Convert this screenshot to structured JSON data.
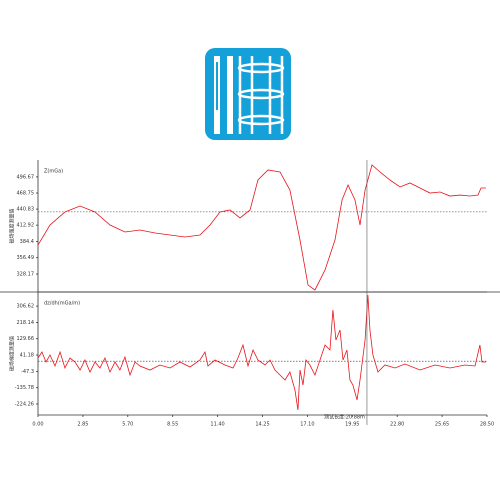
{
  "chart_data": [
    {
      "type": "line",
      "annotation": "Z(mGa)",
      "y_label": "磁场强度测量值",
      "color": "#e8141b",
      "xlim": [
        0,
        28.5
      ],
      "ylim": [
        297,
        526
      ],
      "yticks": [
        496.67,
        468.75,
        440.83,
        412.92,
        384.4,
        356.49,
        328.17
      ],
      "reference_line": 436,
      "cursor_x": 20.88,
      "x": [
        0.0,
        0.76,
        1.71,
        2.67,
        3.62,
        4.57,
        5.52,
        6.47,
        7.43,
        8.38,
        9.33,
        10.28,
        10.92,
        11.55,
        12.19,
        12.82,
        13.46,
        13.96,
        14.6,
        15.36,
        15.99,
        16.63,
        17.14,
        17.58,
        18.22,
        18.85,
        19.3,
        19.68,
        20.12,
        20.44,
        20.76,
        21.2,
        21.71,
        22.34,
        22.98,
        23.61,
        24.25,
        24.88,
        25.52,
        26.15,
        26.78,
        27.42,
        27.93,
        28.12,
        28.43
      ],
      "values": [
        378.5,
        413.2,
        435.8,
        446.2,
        435.8,
        413.2,
        401.1,
        404.6,
        399.3,
        395.9,
        392.4,
        395.9,
        413.2,
        435.8,
        439.3,
        425.4,
        439.3,
        491.3,
        508.7,
        505.2,
        473.9,
        387.2,
        309.1,
        300.5,
        335.2,
        387.2,
        456.6,
        482.6,
        456.6,
        413.2,
        473.9,
        517.3,
        505.2,
        491.3,
        479.2,
        486.1,
        477.4,
        468.7,
        470.5,
        463.5,
        465.2,
        463.5,
        465.2,
        477.4,
        477.4
      ]
    },
    {
      "type": "line",
      "annotation": "dz/dh(mGa/m)",
      "y_label": "磁场梯度测量值",
      "color": "#e8141b",
      "xlim": [
        0,
        28.5
      ],
      "ylim": [
        -284,
        383
      ],
      "yticks": [
        306.62,
        218.14,
        129.66,
        41.18,
        -47.3,
        -135.78,
        -224.26
      ],
      "xticks": [
        {
          "value": 0,
          "label": "0.00"
        },
        2.85,
        {
          "value": 5.7,
          "label": "5.70"
        },
        8.55,
        {
          "value": 11.4,
          "label": "11.40"
        },
        14.25,
        {
          "value": 17.1,
          "label": "17.10"
        },
        19.95,
        {
          "value": 22.8,
          "label": "22.80"
        },
        25.65,
        {
          "value": 28.5,
          "label": "28.50"
        }
      ],
      "reference_line": 8,
      "cursor_x": 20.88,
      "cursor_label": "测试长度:20.88m",
      "x": [
        0.0,
        0.25,
        0.51,
        0.76,
        1.08,
        1.4,
        1.71,
        2.03,
        2.35,
        2.67,
        2.98,
        3.3,
        3.62,
        3.93,
        4.25,
        4.57,
        4.89,
        5.2,
        5.52,
        5.84,
        6.16,
        6.47,
        7.11,
        7.74,
        8.38,
        9.01,
        9.65,
        10.28,
        10.6,
        10.79,
        11.23,
        11.87,
        12.38,
        12.69,
        13.01,
        13.33,
        13.65,
        13.96,
        14.41,
        14.73,
        15.04,
        15.36,
        15.68,
        15.99,
        16.31,
        16.5,
        16.63,
        16.82,
        17.01,
        17.26,
        17.58,
        17.9,
        18.22,
        18.53,
        18.72,
        18.91,
        19.17,
        19.36,
        19.61,
        19.8,
        19.99,
        20.25,
        20.44,
        20.76,
        20.94,
        21.07,
        21.26,
        21.58,
        22.02,
        22.66,
        23.29,
        24.25,
        25.2,
        26.15,
        27.1,
        27.74,
        28.05,
        28.18,
        28.43
      ],
      "values": [
        25.1,
        57.6,
        3.4,
        41.4,
        -18.3,
        57.6,
        -29.1,
        25.1,
        3.4,
        -40.0,
        14.2,
        -50.8,
        3.4,
        -29.1,
        25.1,
        -50.8,
        3.4,
        -40.0,
        30.5,
        -67.1,
        3.4,
        -18.3,
        -40.0,
        -12.9,
        -29.1,
        3.4,
        -23.7,
        14.2,
        57.6,
        -18.3,
        14.2,
        -12.9,
        -29.1,
        25.1,
        95.6,
        -18.3,
        68.5,
        14.2,
        -12.9,
        14.2,
        -40.0,
        -67.1,
        -94.2,
        -50.8,
        -148.5,
        -256.9,
        -40.0,
        -121.3,
        14.2,
        -12.9,
        -67.1,
        14.2,
        95.6,
        68.5,
        285.4,
        122.7,
        176.9,
        14.2,
        68.5,
        -94.2,
        -121.3,
        -202.6,
        -94.2,
        122.7,
        366.7,
        176.9,
        41.4,
        -50.8,
        -12.9,
        -29.1,
        -7.5,
        -40.0,
        -12.9,
        -29.1,
        -12.9,
        -18.3,
        95.6,
        3.4,
        3.4
      ]
    }
  ]
}
